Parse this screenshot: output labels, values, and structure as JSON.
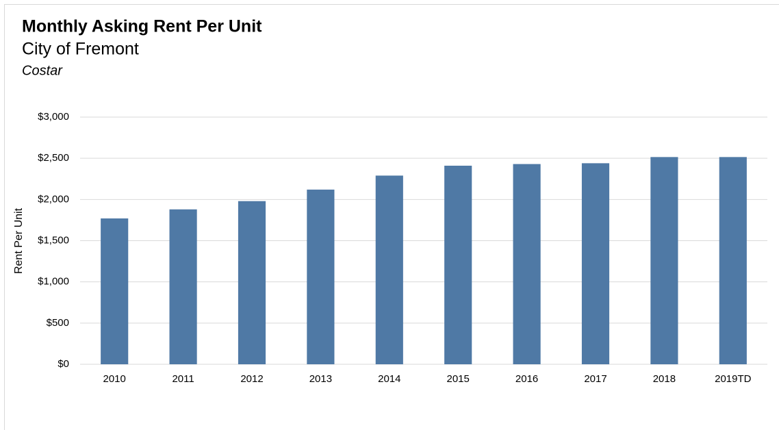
{
  "chart_data": {
    "type": "bar",
    "title": "Monthly Asking Rent Per Unit",
    "subtitle": "City of Fremont",
    "source": "Costar",
    "y_label": "Rent Per Unit",
    "categories": [
      "2010",
      "2011",
      "2012",
      "2013",
      "2014",
      "2015",
      "2016",
      "2017",
      "2018",
      "2019TD"
    ],
    "values": [
      1770,
      1880,
      1980,
      2120,
      2290,
      2410,
      2430,
      2440,
      2515,
      2515
    ],
    "color": "#4f79a5",
    "ylim": [
      0,
      3000
    ],
    "yticks": [
      {
        "value": 0,
        "label": "$0"
      },
      {
        "value": 500,
        "label": "$500"
      },
      {
        "value": 1000,
        "label": "$1,000"
      },
      {
        "value": 1500,
        "label": "$1,500"
      },
      {
        "value": 2000,
        "label": "$2,000"
      },
      {
        "value": 2500,
        "label": "$2,500"
      },
      {
        "value": 3000,
        "label": "$3,000"
      }
    ],
    "grid": true
  }
}
